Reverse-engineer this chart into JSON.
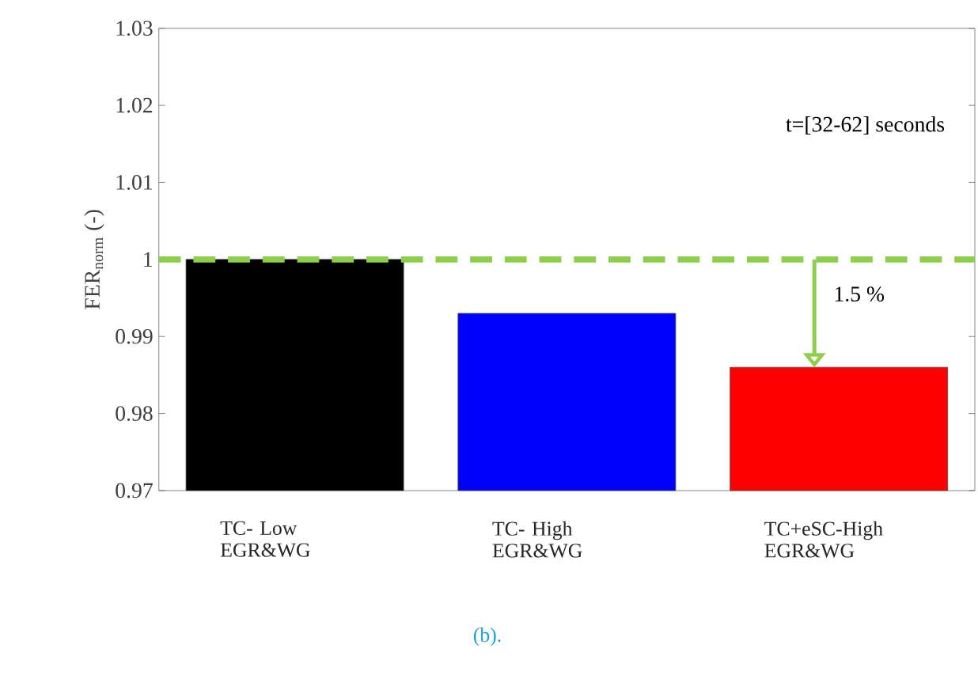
{
  "chart_data": {
    "type": "bar",
    "ylabel": "FER$_{norm}$ (-)",
    "categories": [
      "TC- Low EGR&WG",
      "TC- High EGR&WG",
      "TC+eSC-High EGR&WG"
    ],
    "values": [
      1.0,
      0.993,
      0.986
    ],
    "colors": [
      "#000000",
      "#0000ff",
      "#ff0000"
    ],
    "ylim": [
      0.97,
      1.03
    ],
    "yticks": [
      0.97,
      0.98,
      0.99,
      1,
      1.01,
      1.02,
      1.03
    ],
    "ref_lines": [
      {
        "axis": "y",
        "value": 1,
        "color": "#8dcf4a",
        "line_style": "dashed"
      }
    ],
    "annotations": [
      "t=[32-62] seconds",
      "1.5 %",
      "(b)."
    ],
    "grid": false
  }
}
